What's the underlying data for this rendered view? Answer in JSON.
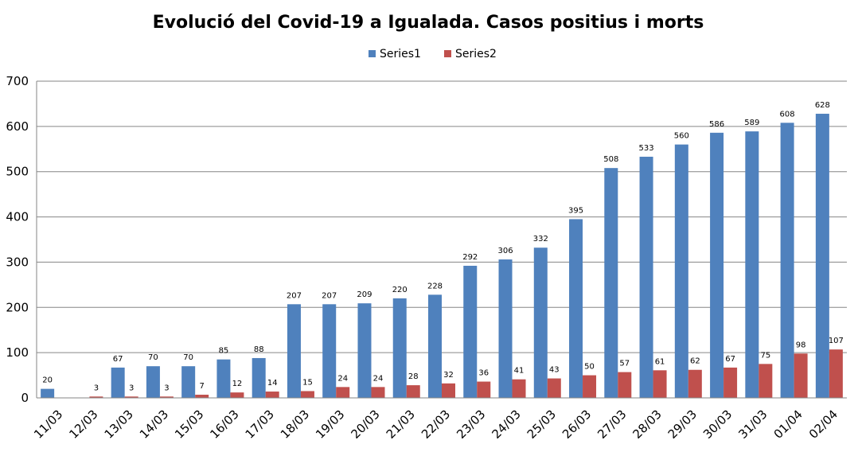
{
  "chart_data": {
    "type": "bar",
    "title": "Evolució del Covid-19 a Igualada. Casos positius i morts",
    "xlabel": "",
    "ylabel": "",
    "ylim": [
      0,
      700
    ],
    "y_ticks": [
      "0",
      "100",
      "200",
      "300",
      "400",
      "500",
      "600",
      "700"
    ],
    "grid": true,
    "legend_position": "top",
    "categories": [
      "11/03",
      "12/03",
      "13/03",
      "14/03",
      "15/03",
      "16/03",
      "17/03",
      "18/03",
      "19/03",
      "20/03",
      "21/03",
      "22/03",
      "23/03",
      "24/03",
      "25/03",
      "26/03",
      "27/03",
      "28/03",
      "29/03",
      "30/03",
      "31/03",
      "01/04",
      "02/04"
    ],
    "series": [
      {
        "name": "Series1",
        "color": "#4F81BD",
        "values": [
          20,
          null,
          67,
          70,
          70,
          85,
          88,
          207,
          207,
          209,
          220,
          228,
          292,
          306,
          332,
          395,
          508,
          533,
          560,
          586,
          589,
          608,
          628
        ]
      },
      {
        "name": "Series2",
        "color": "#C0504D",
        "values": [
          null,
          3,
          3,
          3,
          7,
          12,
          14,
          15,
          24,
          24,
          28,
          32,
          36,
          41,
          43,
          50,
          57,
          61,
          62,
          67,
          75,
          98,
          107
        ]
      }
    ]
  }
}
